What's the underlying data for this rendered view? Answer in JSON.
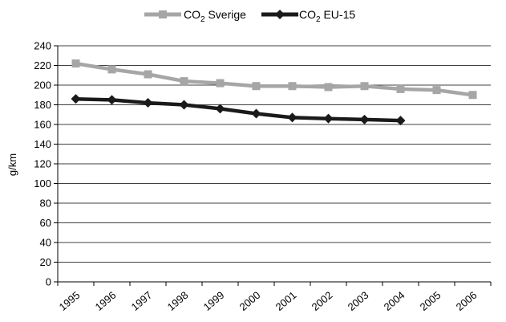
{
  "chart_data": {
    "type": "line",
    "xlabel": "",
    "ylabel": "g/km",
    "ylim": [
      0,
      240
    ],
    "ystep": 20,
    "grid": true,
    "legend_position": "top",
    "categories": [
      "1995",
      "1996",
      "1997",
      "1998",
      "1999",
      "2000",
      "2001",
      "2002",
      "2003",
      "2004",
      "2005",
      "2006"
    ],
    "series": [
      {
        "name_main": "CO",
        "name_sub": "2",
        "name_rest": " Sverige",
        "color": "#a6a6a6",
        "marker": "square",
        "values": [
          222,
          216,
          211,
          204,
          202,
          199,
          199,
          198,
          199,
          196,
          195,
          190
        ]
      },
      {
        "name_main": "CO",
        "name_sub": "2",
        "name_rest": " EU-15",
        "color": "#1a1a1a",
        "marker": "diamond",
        "values": [
          186,
          185,
          182,
          180,
          176,
          171,
          167,
          166,
          165,
          164,
          null,
          null
        ]
      }
    ]
  }
}
